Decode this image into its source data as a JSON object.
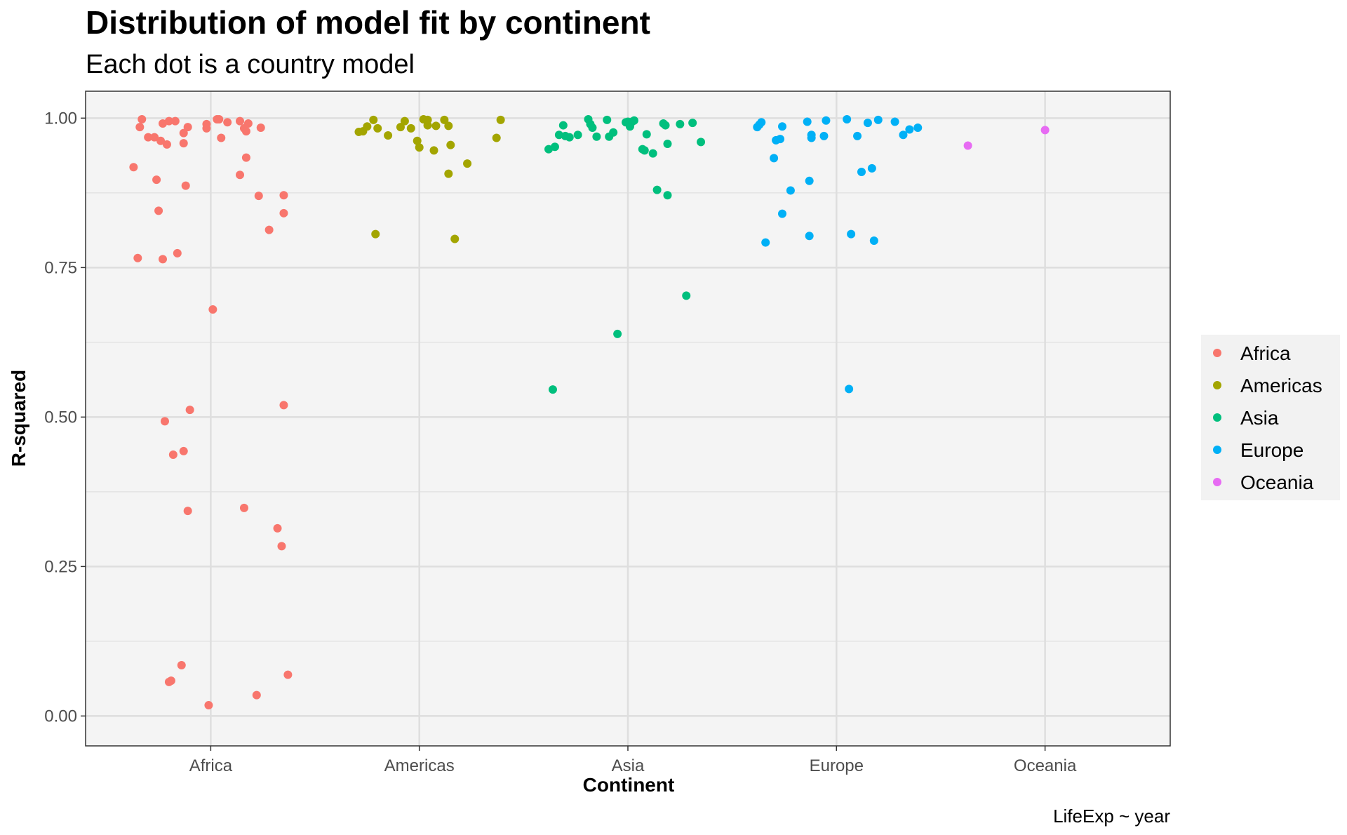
{
  "chart_data": {
    "type": "scatter",
    "title": "Distribution of model fit by continent",
    "subtitle": "Each dot is a country model",
    "xlabel": "Continent",
    "ylabel": "R-squared",
    "caption": "LifeExp ~ year",
    "categories": [
      "Africa",
      "Americas",
      "Asia",
      "Europe",
      "Oceania"
    ],
    "ylim": [
      -0.05,
      1.045
    ],
    "yticks": [
      0.0,
      0.25,
      0.5,
      0.75,
      1.0
    ],
    "ytick_labels": [
      "0.00",
      "0.25",
      "0.50",
      "0.75",
      "1.00"
    ],
    "grid": true,
    "legend_position": "right",
    "series": [
      {
        "name": "Africa",
        "color": "#F8766D",
        "points": [
          [
            0.63,
            0.918
          ],
          [
            0.65,
            0.766
          ],
          [
            0.66,
            0.985
          ],
          [
            0.67,
            0.998
          ],
          [
            0.7,
            0.968
          ],
          [
            0.73,
            0.968
          ],
          [
            0.74,
            0.897
          ],
          [
            0.75,
            0.845
          ],
          [
            0.76,
            0.962
          ],
          [
            0.77,
            0.991
          ],
          [
            0.77,
            0.764
          ],
          [
            0.78,
            0.493
          ],
          [
            0.79,
            0.956
          ],
          [
            0.8,
            0.995
          ],
          [
            0.8,
            0.057
          ],
          [
            0.81,
            0.059
          ],
          [
            0.82,
            0.437
          ],
          [
            0.83,
            0.995
          ],
          [
            0.84,
            0.774
          ],
          [
            0.86,
            0.085
          ],
          [
            0.87,
            0.958
          ],
          [
            0.87,
            0.975
          ],
          [
            0.87,
            0.443
          ],
          [
            0.88,
            0.887
          ],
          [
            0.89,
            0.343
          ],
          [
            0.89,
            0.985
          ],
          [
            0.9,
            0.512
          ],
          [
            0.99,
            0.018
          ],
          [
            0.98,
            0.99
          ],
          [
            0.98,
            0.983
          ],
          [
            1.01,
            0.68
          ],
          [
            1.03,
            0.998
          ],
          [
            1.04,
            0.998
          ],
          [
            1.05,
            0.967
          ],
          [
            1.08,
            0.993
          ],
          [
            1.14,
            0.995
          ],
          [
            1.14,
            0.905
          ],
          [
            1.16,
            0.983
          ],
          [
            1.16,
            0.348
          ],
          [
            1.17,
            0.934
          ],
          [
            1.17,
            0.978
          ],
          [
            1.18,
            0.991
          ],
          [
            1.22,
            0.035
          ],
          [
            1.23,
            0.87
          ],
          [
            1.24,
            0.984
          ],
          [
            1.28,
            0.813
          ],
          [
            1.32,
            0.314
          ],
          [
            1.34,
            0.284
          ],
          [
            1.35,
            0.52
          ],
          [
            1.35,
            0.871
          ],
          [
            1.35,
            0.841
          ],
          [
            1.37,
            0.069
          ]
        ]
      },
      {
        "name": "Americas",
        "color": "#A3A500",
        "points": [
          [
            1.71,
            0.977
          ],
          [
            1.73,
            0.978
          ],
          [
            1.75,
            0.986
          ],
          [
            1.78,
            0.997
          ],
          [
            1.79,
            0.806
          ],
          [
            1.8,
            0.983
          ],
          [
            1.85,
            0.971
          ],
          [
            1.91,
            0.985
          ],
          [
            1.93,
            0.995
          ],
          [
            1.96,
            0.983
          ],
          [
            1.99,
            0.962
          ],
          [
            2.04,
            0.988
          ],
          [
            2.0,
            0.951
          ],
          [
            2.02,
            0.998
          ],
          [
            2.04,
            0.997
          ],
          [
            2.07,
            0.946
          ],
          [
            2.08,
            0.987
          ],
          [
            2.12,
            0.997
          ],
          [
            2.14,
            0.987
          ],
          [
            2.14,
            0.907
          ],
          [
            2.15,
            0.955
          ],
          [
            2.17,
            0.798
          ],
          [
            2.23,
            0.924
          ],
          [
            2.37,
            0.967
          ],
          [
            2.39,
            0.997
          ]
        ]
      },
      {
        "name": "Asia",
        "color": "#00BF7D",
        "points": [
          [
            2.62,
            0.948
          ],
          [
            2.65,
            0.952
          ],
          [
            2.64,
            0.546
          ],
          [
            2.67,
            0.972
          ],
          [
            2.69,
            0.988
          ],
          [
            2.7,
            0.97
          ],
          [
            2.72,
            0.968
          ],
          [
            2.76,
            0.972
          ],
          [
            2.81,
            0.998
          ],
          [
            2.82,
            0.99
          ],
          [
            2.83,
            0.984
          ],
          [
            2.85,
            0.969
          ],
          [
            2.9,
            0.997
          ],
          [
            2.91,
            0.969
          ],
          [
            2.93,
            0.976
          ],
          [
            2.95,
            0.639
          ],
          [
            2.99,
            0.993
          ],
          [
            3.0,
            0.994
          ],
          [
            3.01,
            0.986
          ],
          [
            3.02,
            0.994
          ],
          [
            3.03,
            0.996
          ],
          [
            3.07,
            0.948
          ],
          [
            3.08,
            0.946
          ],
          [
            3.09,
            0.973
          ],
          [
            3.12,
            0.941
          ],
          [
            3.14,
            0.88
          ],
          [
            3.17,
            0.991
          ],
          [
            3.18,
            0.988
          ],
          [
            3.19,
            0.957
          ],
          [
            3.19,
            0.871
          ],
          [
            3.25,
            0.99
          ],
          [
            3.28,
            0.703
          ],
          [
            3.31,
            0.992
          ],
          [
            3.35,
            0.96
          ]
        ]
      },
      {
        "name": "Europe",
        "color": "#00B0F6",
        "points": [
          [
            3.62,
            0.985
          ],
          [
            3.63,
            0.989
          ],
          [
            3.64,
            0.993
          ],
          [
            3.66,
            0.792
          ],
          [
            3.7,
            0.933
          ],
          [
            3.71,
            0.963
          ],
          [
            3.73,
            0.965
          ],
          [
            3.74,
            0.986
          ],
          [
            3.74,
            0.84
          ],
          [
            3.78,
            0.879
          ],
          [
            3.86,
            0.994
          ],
          [
            3.87,
            0.895
          ],
          [
            3.87,
            0.803
          ],
          [
            3.88,
            0.972
          ],
          [
            3.88,
            0.967
          ],
          [
            3.94,
            0.97
          ],
          [
            3.95,
            0.996
          ],
          [
            4.05,
            0.998
          ],
          [
            4.06,
            0.547
          ],
          [
            4.07,
            0.806
          ],
          [
            4.1,
            0.97
          ],
          [
            4.12,
            0.91
          ],
          [
            4.15,
            0.992
          ],
          [
            4.17,
            0.916
          ],
          [
            4.18,
            0.795
          ],
          [
            4.2,
            0.997
          ],
          [
            4.28,
            0.994
          ],
          [
            4.32,
            0.972
          ],
          [
            4.35,
            0.981
          ],
          [
            4.39,
            0.984
          ]
        ]
      },
      {
        "name": "Oceania",
        "color": "#E76BF3",
        "points": [
          [
            4.63,
            0.954
          ],
          [
            5.0,
            0.98
          ]
        ]
      }
    ]
  }
}
